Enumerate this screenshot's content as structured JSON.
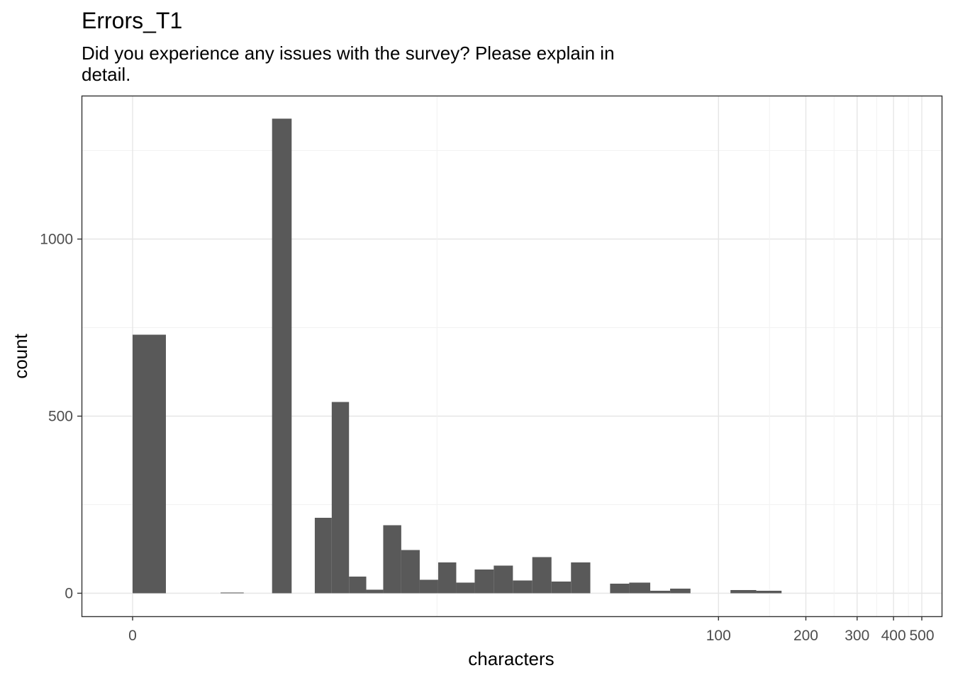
{
  "chart_data": {
    "type": "bar",
    "title": "Errors_T1",
    "subtitle_lines": [
      "Did you experience any issues with the survey? Please explain in",
      "detail."
    ],
    "xlabel": "characters",
    "ylabel": "count",
    "x_scale": "pseudo-log",
    "x_ticks": [
      {
        "value": 0,
        "label": "0"
      },
      {
        "value": 100,
        "label": "100"
      },
      {
        "value": 200,
        "label": "200"
      },
      {
        "value": 300,
        "label": "300"
      },
      {
        "value": 400,
        "label": "400"
      },
      {
        "value": 500,
        "label": "500"
      }
    ],
    "y_ticks": [
      {
        "value": 0,
        "label": "0"
      },
      {
        "value": 500,
        "label": "500"
      },
      {
        "value": 1000,
        "label": "1000"
      }
    ],
    "ylim": [
      -65,
      1405
    ],
    "grid": true,
    "bar_color": "#595959",
    "bins": [
      {
        "x0": 0,
        "x1": 0.3,
        "count": 730
      },
      {
        "x0": 1.0,
        "x1": 1.4,
        "count": 2
      },
      {
        "x0": 2.0,
        "x1": 2.5,
        "count": 1340
      },
      {
        "x0": 3.2,
        "x1": 3.8,
        "count": 213
      },
      {
        "x0": 3.8,
        "x1": 4.5,
        "count": 540
      },
      {
        "x0": 4.5,
        "x1": 5.3,
        "count": 47
      },
      {
        "x0": 5.3,
        "x1": 6.2,
        "count": 10
      },
      {
        "x0": 6.2,
        "x1": 7.3,
        "count": 192
      },
      {
        "x0": 7.3,
        "x1": 8.6,
        "count": 122
      },
      {
        "x0": 8.6,
        "x1": 10.1,
        "count": 38
      },
      {
        "x0": 10.1,
        "x1": 11.8,
        "count": 87
      },
      {
        "x0": 11.8,
        "x1": 13.8,
        "count": 30
      },
      {
        "x0": 13.8,
        "x1": 16.2,
        "count": 67
      },
      {
        "x0": 16.2,
        "x1": 19.0,
        "count": 78
      },
      {
        "x0": 19.0,
        "x1": 22.3,
        "count": 36
      },
      {
        "x0": 22.3,
        "x1": 26.1,
        "count": 102
      },
      {
        "x0": 26.1,
        "x1": 30.6,
        "count": 33
      },
      {
        "x0": 30.6,
        "x1": 35.8,
        "count": 87
      },
      {
        "x0": 42,
        "x1": 49,
        "count": 27
      },
      {
        "x0": 49,
        "x1": 58,
        "count": 30
      },
      {
        "x0": 58,
        "x1": 68,
        "count": 7
      },
      {
        "x0": 68,
        "x1": 80,
        "count": 13
      },
      {
        "x0": 110,
        "x1": 135,
        "count": 9
      },
      {
        "x0": 135,
        "x1": 165,
        "count": 7
      }
    ]
  }
}
